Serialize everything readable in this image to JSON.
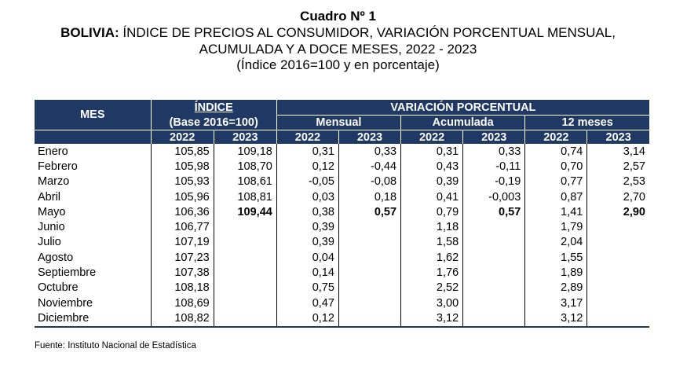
{
  "title": {
    "line1": "Cuadro Nº 1",
    "line2_bold": "BOLIVIA:",
    "line2_rest": " ÍNDICE DE PRECIOS AL CONSUMIDOR, VARIACIÓN PORCENTUAL MENSUAL,",
    "line3": "ACUMULADA Y A DOCE MESES, 2022 - 2023",
    "line4": "(Índice 2016=100 y en porcentaje)"
  },
  "header": {
    "mes": "MES",
    "indice": "ÍNDICE",
    "base": "(Base 2016=100)",
    "variacion": "VARIACIÓN PORCENTUAL",
    "mensual": "Mensual",
    "acumulada": "Acumulada",
    "doce": "12 meses",
    "years": [
      "2022",
      "2023",
      "2022",
      "2023",
      "2022",
      "2023",
      "2022",
      "2023"
    ]
  },
  "rows": [
    {
      "mes": "Enero",
      "i22": "105,85",
      "i23": "109,18",
      "m22": "0,31",
      "m23": "0,33",
      "a22": "0,31",
      "a23": "0,33",
      "d22": "0,74",
      "d23": "3,14"
    },
    {
      "mes": "Febrero",
      "i22": "105,98",
      "i23": "108,70",
      "m22": "0,12",
      "m23": "-0,44",
      "a22": "0,43",
      "a23": "-0,11",
      "d22": "0,70",
      "d23": "2,57"
    },
    {
      "mes": "Marzo",
      "i22": "105,93",
      "i23": "108,61",
      "m22": "-0,05",
      "m23": "-0,08",
      "a22": "0,39",
      "a23": "-0,19",
      "d22": "0,77",
      "d23": "2,53"
    },
    {
      "mes": "Abril",
      "i22": "105,96",
      "i23": "108,81",
      "m22": "0,03",
      "m23": "0,18",
      "a22": "0,41",
      "a23": "-0,003",
      "d22": "0,87",
      "d23": "2,70"
    },
    {
      "mes": "Mayo",
      "i22": "106,36",
      "i23": "109,44",
      "m22": "0,38",
      "m23": "0,57",
      "a22": "0,79",
      "a23": "0,57",
      "d22": "1,41",
      "d23": "2,90"
    },
    {
      "mes": "Junio",
      "i22": "106,77",
      "i23": "",
      "m22": "0,39",
      "m23": "",
      "a22": "1,18",
      "a23": "",
      "d22": "1,79",
      "d23": ""
    },
    {
      "mes": "Julio",
      "i22": "107,19",
      "i23": "",
      "m22": "0,39",
      "m23": "",
      "a22": "1,58",
      "a23": "",
      "d22": "2,04",
      "d23": ""
    },
    {
      "mes": "Agosto",
      "i22": "107,23",
      "i23": "",
      "m22": "0,04",
      "m23": "",
      "a22": "1,62",
      "a23": "",
      "d22": "1,55",
      "d23": ""
    },
    {
      "mes": "Septiembre",
      "i22": "107,38",
      "i23": "",
      "m22": "0,14",
      "m23": "",
      "a22": "1,76",
      "a23": "",
      "d22": "1,89",
      "d23": ""
    },
    {
      "mes": "Octubre",
      "i22": "108,18",
      "i23": "",
      "m22": "0,75",
      "m23": "",
      "a22": "2,52",
      "a23": "",
      "d22": "2,89",
      "d23": ""
    },
    {
      "mes": "Noviembre",
      "i22": "108,69",
      "i23": "",
      "m22": "0,47",
      "m23": "",
      "a22": "3,00",
      "a23": "",
      "d22": "3,17",
      "d23": ""
    },
    {
      "mes": "Diciembre",
      "i22": "108,82",
      "i23": "",
      "m22": "0,12",
      "m23": "",
      "a22": "3,12",
      "a23": "",
      "d22": "3,12",
      "d23": ""
    }
  ],
  "highlight_row": 4,
  "highlight_cols": [
    "i23",
    "m23",
    "a23",
    "d23"
  ],
  "source": "Fuente: Instituto Nacional de Estadística",
  "colors": {
    "header_bg": "#1f3864",
    "header_text": "#ffffff"
  }
}
